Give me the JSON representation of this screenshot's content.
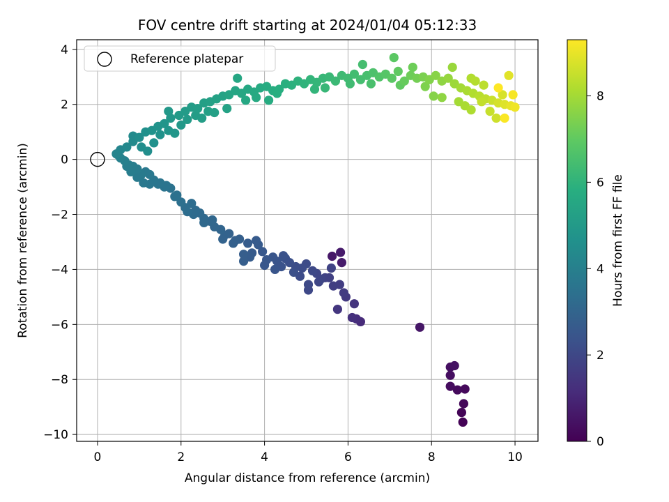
{
  "chart_data": {
    "type": "scatter",
    "title": "FOV centre drift starting at 2024/01/04 05:12:33",
    "xlabel": "Angular distance from reference (arcmin)",
    "ylabel": "Rotation from reference (arcmin)",
    "xlim": [
      -0.5,
      10.55
    ],
    "ylim": [
      -10.25,
      4.35
    ],
    "xticks": [
      0,
      2,
      4,
      6,
      8,
      10
    ],
    "yticks": [
      -10,
      -8,
      -6,
      -4,
      -2,
      0,
      2,
      4
    ],
    "xtick_labels": [
      "0",
      "2",
      "4",
      "6",
      "8",
      "10"
    ],
    "ytick_labels": [
      "−10",
      "−8",
      "−6",
      "−4",
      "−2",
      "0",
      "2",
      "4"
    ],
    "grid": true,
    "colormap": "viridis",
    "colorbar": {
      "label": "Hours from first FF file",
      "range": [
        0,
        9.3
      ],
      "ticks": [
        0,
        2,
        4,
        6,
        8
      ],
      "tick_labels": [
        "0",
        "2",
        "4",
        "6",
        "8"
      ]
    },
    "legend": {
      "position": "top-left",
      "entries": [
        "Reference platepar"
      ]
    },
    "reference_point": {
      "x": 0,
      "y": 0
    },
    "series": [
      {
        "key": "first_hour",
        "points": [
          [
            8.75,
            -9.55,
            0.05
          ],
          [
            8.72,
            -9.2,
            0.1
          ],
          [
            8.77,
            -8.88,
            0.15
          ],
          [
            8.8,
            -8.35,
            0.2
          ],
          [
            8.62,
            -8.38,
            0.25
          ],
          [
            8.45,
            -8.25,
            0.3
          ],
          [
            8.45,
            -7.85,
            0.35
          ],
          [
            8.45,
            -7.55,
            0.4
          ],
          [
            8.55,
            -7.5,
            0.45
          ],
          [
            7.72,
            -6.1,
            0.55
          ],
          [
            5.62,
            -3.52,
            0.6
          ],
          [
            5.82,
            -3.38,
            0.65
          ],
          [
            5.85,
            -3.75,
            0.7
          ]
        ]
      },
      {
        "key": "lower_arm",
        "points": [
          [
            6.3,
            -5.9,
            1.1
          ],
          [
            6.2,
            -5.8,
            1.2
          ],
          [
            6.1,
            -5.75,
            1.3
          ],
          [
            6.15,
            -5.25,
            1.4
          ],
          [
            5.75,
            -5.45,
            1.45
          ],
          [
            5.95,
            -5.0,
            1.55
          ],
          [
            5.9,
            -4.85,
            1.6
          ],
          [
            5.8,
            -4.55,
            1.65
          ],
          [
            5.65,
            -4.6,
            1.7
          ],
          [
            5.55,
            -4.3,
            1.75
          ],
          [
            5.45,
            -4.3,
            1.8
          ],
          [
            5.6,
            -3.95,
            1.85
          ],
          [
            5.35,
            -4.35,
            1.9
          ],
          [
            5.25,
            -4.15,
            1.95
          ],
          [
            5.05,
            -4.75,
            2.0
          ],
          [
            5.15,
            -4.05,
            2.05
          ],
          [
            5.0,
            -3.8,
            2.1
          ],
          [
            4.85,
            -4.25,
            2.15
          ],
          [
            4.75,
            -3.9,
            2.2
          ],
          [
            4.6,
            -3.75,
            2.25
          ],
          [
            4.5,
            -3.6,
            2.3
          ],
          [
            4.4,
            -3.9,
            2.35
          ],
          [
            4.3,
            -3.7,
            2.4
          ],
          [
            4.2,
            -3.55,
            2.45
          ],
          [
            4.05,
            -3.65,
            2.5
          ],
          [
            3.95,
            -3.35,
            2.55
          ],
          [
            3.85,
            -3.1,
            2.6
          ],
          [
            3.7,
            -3.4,
            2.65
          ],
          [
            3.6,
            -3.05,
            2.7
          ],
          [
            3.5,
            -3.45,
            2.75
          ],
          [
            3.4,
            -2.9,
            2.8
          ],
          [
            3.3,
            -2.95,
            2.85
          ],
          [
            3.15,
            -2.7,
            2.9
          ],
          [
            3.05,
            -2.75,
            2.95
          ],
          [
            2.95,
            -2.55,
            3.0
          ],
          [
            2.8,
            -2.45,
            3.05
          ],
          [
            2.7,
            -2.25,
            3.1
          ],
          [
            2.55,
            -2.15,
            3.15
          ],
          [
            2.45,
            -1.95,
            3.2
          ],
          [
            2.35,
            -1.85,
            3.25
          ],
          [
            2.25,
            -1.6,
            3.3
          ],
          [
            2.1,
            -1.75,
            3.35
          ],
          [
            2.0,
            -1.55,
            3.4
          ],
          [
            1.85,
            -1.35,
            3.45
          ],
          [
            1.75,
            -1.05,
            3.5
          ],
          [
            1.6,
            -1.0,
            3.55
          ],
          [
            1.45,
            -0.9,
            3.6
          ],
          [
            1.35,
            -0.75,
            3.65
          ],
          [
            1.25,
            -0.55,
            3.7
          ],
          [
            1.15,
            -0.45,
            3.75
          ],
          [
            1.05,
            -0.55,
            3.8
          ],
          [
            0.95,
            -0.35,
            3.85
          ],
          [
            0.85,
            -0.25,
            3.9
          ],
          [
            0.75,
            -0.2,
            3.95
          ],
          [
            0.65,
            -0.05,
            4.0
          ],
          [
            0.55,
            0.05,
            4.05
          ]
        ]
      },
      {
        "key": "upper_arm",
        "points": [
          [
            0.45,
            0.2,
            4.15
          ],
          [
            0.55,
            0.35,
            4.2
          ],
          [
            0.7,
            0.45,
            4.3
          ],
          [
            0.85,
            0.65,
            4.4
          ],
          [
            1.0,
            0.8,
            4.5
          ],
          [
            1.15,
            1.0,
            4.6
          ],
          [
            1.3,
            1.05,
            4.7
          ],
          [
            1.45,
            1.2,
            4.75
          ],
          [
            1.6,
            1.3,
            4.8
          ],
          [
            1.75,
            1.5,
            4.9
          ],
          [
            1.95,
            1.6,
            5.0
          ],
          [
            2.1,
            1.75,
            5.05
          ],
          [
            2.25,
            1.9,
            5.1
          ],
          [
            2.4,
            1.85,
            5.15
          ],
          [
            2.55,
            2.05,
            5.2
          ],
          [
            2.7,
            2.1,
            5.25
          ],
          [
            2.85,
            2.2,
            5.3
          ],
          [
            3.0,
            2.3,
            5.35
          ],
          [
            3.15,
            2.35,
            5.4
          ],
          [
            3.3,
            2.5,
            5.45
          ],
          [
            3.45,
            2.4,
            5.5
          ],
          [
            3.6,
            2.55,
            5.55
          ],
          [
            3.75,
            2.45,
            5.6
          ],
          [
            3.9,
            2.6,
            5.65
          ],
          [
            4.05,
            2.65,
            5.7
          ],
          [
            4.2,
            2.5,
            5.75
          ],
          [
            4.35,
            2.55,
            5.8
          ],
          [
            4.5,
            2.75,
            5.85
          ],
          [
            4.65,
            2.7,
            5.9
          ],
          [
            4.8,
            2.85,
            5.95
          ],
          [
            4.95,
            2.75,
            6.0
          ],
          [
            5.1,
            2.9,
            6.05
          ],
          [
            5.25,
            2.8,
            6.1
          ],
          [
            5.4,
            2.95,
            6.15
          ],
          [
            5.55,
            3.0,
            6.2
          ],
          [
            5.7,
            2.85,
            6.25
          ],
          [
            5.85,
            3.05,
            6.3
          ],
          [
            6.0,
            2.95,
            6.35
          ],
          [
            6.15,
            3.1,
            6.4
          ],
          [
            6.3,
            2.9,
            6.45
          ],
          [
            6.45,
            3.05,
            6.5
          ],
          [
            6.6,
            3.15,
            6.6
          ],
          [
            6.75,
            3.0,
            6.7
          ],
          [
            6.9,
            3.1,
            6.8
          ],
          [
            7.05,
            2.95,
            6.9
          ],
          [
            7.2,
            3.2,
            7.0
          ],
          [
            7.35,
            2.85,
            7.1
          ],
          [
            7.5,
            3.05,
            7.2
          ],
          [
            7.65,
            2.95,
            7.3
          ],
          [
            7.8,
            3.0,
            7.4
          ],
          [
            7.95,
            2.9,
            7.5
          ],
          [
            8.1,
            3.05,
            7.6
          ],
          [
            8.25,
            2.85,
            7.7
          ],
          [
            8.4,
            2.95,
            7.8
          ],
          [
            8.55,
            2.75,
            7.9
          ],
          [
            8.7,
            2.6,
            8.0
          ],
          [
            8.85,
            2.5,
            8.1
          ],
          [
            9.0,
            2.4,
            8.2
          ],
          [
            9.15,
            2.3,
            8.3
          ],
          [
            9.3,
            2.2,
            8.4
          ],
          [
            9.45,
            2.15,
            8.55
          ],
          [
            9.6,
            2.05,
            8.7
          ],
          [
            9.75,
            2.0,
            8.85
          ],
          [
            9.9,
            1.95,
            9.0
          ]
        ]
      },
      {
        "key": "outliers",
        "points": [
          [
            0.5,
            0.15,
            4.1
          ],
          [
            0.7,
            -0.25,
            3.95
          ],
          [
            0.8,
            -0.45,
            3.9
          ],
          [
            0.95,
            -0.65,
            3.8
          ],
          [
            1.1,
            -0.85,
            3.7
          ],
          [
            1.25,
            -0.9,
            3.65
          ],
          [
            1.5,
            -0.85,
            3.6
          ],
          [
            1.65,
            -0.95,
            3.55
          ],
          [
            1.9,
            -1.3,
            3.45
          ],
          [
            2.15,
            -1.9,
            3.3
          ],
          [
            2.3,
            -2.0,
            3.25
          ],
          [
            2.55,
            -2.3,
            3.15
          ],
          [
            2.75,
            -2.2,
            3.1
          ],
          [
            3.0,
            -2.9,
            2.95
          ],
          [
            3.25,
            -3.05,
            2.85
          ],
          [
            3.5,
            -3.7,
            2.75
          ],
          [
            3.65,
            -3.55,
            2.7
          ],
          [
            3.8,
            -2.95,
            2.65
          ],
          [
            4.0,
            -3.85,
            2.5
          ],
          [
            4.25,
            -4.0,
            2.45
          ],
          [
            4.45,
            -3.5,
            2.35
          ],
          [
            4.7,
            -4.1,
            2.25
          ],
          [
            4.9,
            -3.95,
            2.15
          ],
          [
            5.05,
            -4.55,
            2.05
          ],
          [
            5.3,
            -4.45,
            1.95
          ],
          [
            0.85,
            0.85,
            4.4
          ],
          [
            1.05,
            0.45,
            4.5
          ],
          [
            1.2,
            0.3,
            4.55
          ],
          [
            1.35,
            0.6,
            4.65
          ],
          [
            1.5,
            0.9,
            4.7
          ],
          [
            1.7,
            1.05,
            4.8
          ],
          [
            1.85,
            0.95,
            4.85
          ],
          [
            2.0,
            1.25,
            4.95
          ],
          [
            1.7,
            1.75,
            4.95
          ],
          [
            2.15,
            1.45,
            5.0
          ],
          [
            2.35,
            1.6,
            5.1
          ],
          [
            2.5,
            1.5,
            5.15
          ],
          [
            2.65,
            1.75,
            5.2
          ],
          [
            2.8,
            1.7,
            5.25
          ],
          [
            3.1,
            1.85,
            5.35
          ],
          [
            3.35,
            2.95,
            5.5
          ],
          [
            3.55,
            2.15,
            5.55
          ],
          [
            3.8,
            2.25,
            5.6
          ],
          [
            4.1,
            2.15,
            5.7
          ],
          [
            4.3,
            2.4,
            5.8
          ],
          [
            5.2,
            2.55,
            6.05
          ],
          [
            5.45,
            2.6,
            6.15
          ],
          [
            6.05,
            2.75,
            6.35
          ],
          [
            6.35,
            3.45,
            6.45
          ],
          [
            6.55,
            2.75,
            6.55
          ],
          [
            7.1,
            3.7,
            6.9
          ],
          [
            7.25,
            2.7,
            7.0
          ],
          [
            7.55,
            3.35,
            7.2
          ],
          [
            7.85,
            2.65,
            7.45
          ],
          [
            8.05,
            2.3,
            7.55
          ],
          [
            8.25,
            2.25,
            7.7
          ],
          [
            8.5,
            3.35,
            7.85
          ],
          [
            8.65,
            2.1,
            8.0
          ],
          [
            8.8,
            1.95,
            8.1
          ],
          [
            8.95,
            1.8,
            8.15
          ],
          [
            9.25,
            2.7,
            8.35
          ],
          [
            9.4,
            1.75,
            8.5
          ],
          [
            9.55,
            1.5,
            8.6
          ],
          [
            9.7,
            2.35,
            8.75
          ],
          [
            9.85,
            3.05,
            8.9
          ],
          [
            10.0,
            1.9,
            9.1
          ],
          [
            9.95,
            2.35,
            9.2
          ],
          [
            9.75,
            1.5,
            9.25
          ],
          [
            9.6,
            2.6,
            9.3
          ],
          [
            9.2,
            2.1,
            8.45
          ],
          [
            8.95,
            2.95,
            8.2
          ],
          [
            9.05,
            2.85,
            8.25
          ]
        ]
      }
    ]
  }
}
